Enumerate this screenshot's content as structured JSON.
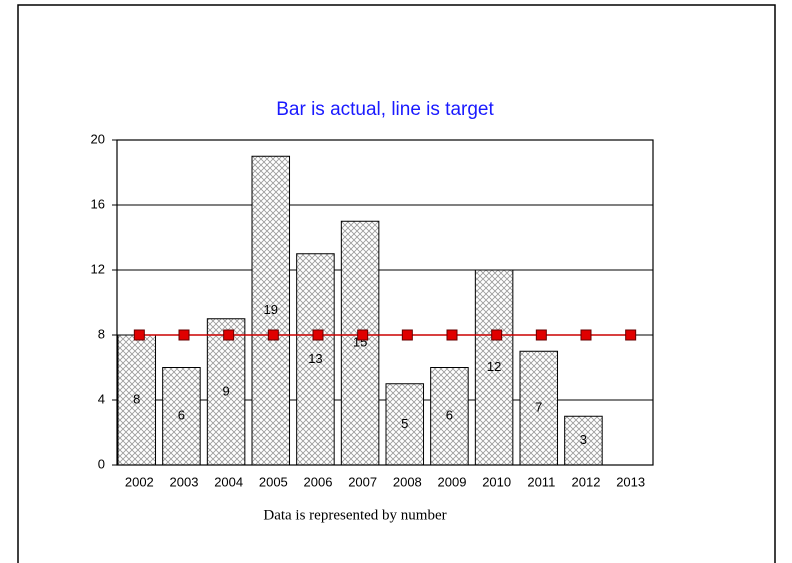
{
  "chart_data": {
    "type": "bar",
    "title": "Bar is actual, line is target",
    "caption": "Data is represented by number",
    "categories": [
      "2002",
      "2003",
      "2004",
      "2005",
      "2006",
      "2007",
      "2008",
      "2009",
      "2010",
      "2011",
      "2012",
      "2013"
    ],
    "series": [
      {
        "name": "Actual",
        "type": "bar",
        "color": "#999999",
        "values": [
          8,
          6,
          9,
          19,
          13,
          15,
          5,
          6,
          12,
          7,
          3,
          null
        ]
      },
      {
        "name": "Target",
        "type": "line",
        "color": "#cc0000",
        "values": [
          8,
          8,
          8,
          8,
          8,
          8,
          8,
          8,
          8,
          8,
          8,
          8
        ]
      }
    ],
    "ylim": [
      0,
      20
    ],
    "yticks": [
      0,
      4,
      8,
      12,
      16,
      20
    ],
    "grid": true
  }
}
